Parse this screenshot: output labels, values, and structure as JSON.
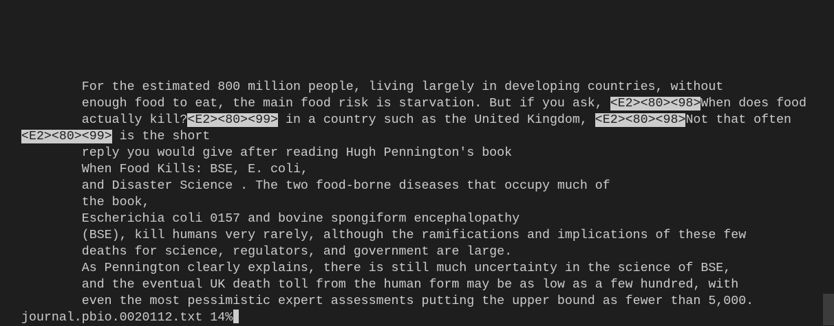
{
  "lines": [
    [
      {
        "text": "\tFor the estimated 800 million people, living largely in developing countries, without"
      }
    ],
    [
      {
        "text": "\tenough food to eat, the main food risk is starvation. But if you ask, "
      },
      {
        "text": "<E2><80><98>",
        "highlight": true
      },
      {
        "text": "When does food"
      }
    ],
    [
      {
        "text": "\tactually kill?"
      },
      {
        "text": "<E2><80><99>",
        "highlight": true
      },
      {
        "text": " in a country such as the United Kingdom, "
      },
      {
        "text": "<E2><80><98>",
        "highlight": true
      },
      {
        "text": "Not that often"
      }
    ],
    [
      {
        "text": "<E2><80><99>",
        "highlight": true
      },
      {
        "text": " is the short"
      }
    ],
    [
      {
        "text": "\treply you would give after reading Hugh Pennington's book"
      }
    ],
    [
      {
        "text": "\tWhen Food Kills: BSE, E. coli,"
      }
    ],
    [
      {
        "text": "\tand Disaster Science . The two food-borne diseases that occupy much of"
      }
    ],
    [
      {
        "text": "\tthe book,"
      }
    ],
    [
      {
        "text": "\tEscherichia coli 0157 and bovine spongiform encephalopathy"
      }
    ],
    [
      {
        "text": "\t(BSE), kill humans very rarely, although the ramifications and implications of these few"
      }
    ],
    [
      {
        "text": "\tdeaths for science, regulators, and government are large."
      }
    ],
    [
      {
        "text": "\tAs Pennington clearly explains, there is still much uncertainty in the science of BSE,"
      }
    ],
    [
      {
        "text": "\tand the eventual UK death toll from the human form may be as low as a few hundred, with"
      }
    ],
    [
      {
        "text": "\teven the most pessimistic expert assessments putting the upper bound as fewer than 5,000."
      }
    ]
  ],
  "status": "journal.pbio.0020112.txt 14%"
}
